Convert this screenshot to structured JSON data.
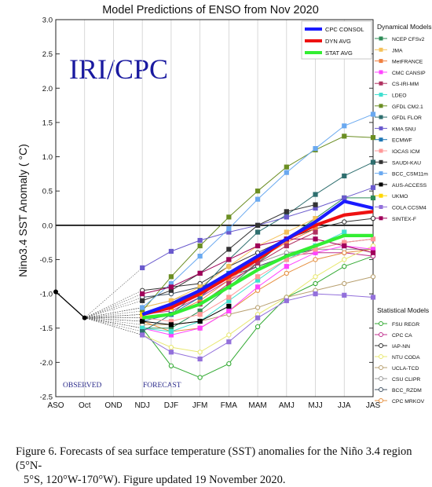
{
  "chart_data": {
    "type": "line",
    "title": "Model Predictions of ENSO from Nov 2020",
    "ylabel": "Nino3.4 SST Anomaly ( °C)",
    "xlabel": "",
    "categories": [
      "ASO",
      "Oct",
      "OND",
      "NDJ",
      "DJF",
      "JFM",
      "FMA",
      "MAM",
      "AMJ",
      "MJJ",
      "JJA",
      "JAS"
    ],
    "ylim": [
      -2.5,
      3.0
    ],
    "yticks": [
      "3.0",
      "2.5",
      "2.0",
      "1.5",
      "1.0",
      "0.5",
      "0.0",
      "-0.5",
      "-1.0",
      "-1.5",
      "-2.0",
      "-2.5"
    ],
    "watermark": "IRI/CPC",
    "observed_label": "OBSERVED",
    "forecast_label": "FORECAST",
    "observed": [
      -0.97,
      -1.35
    ],
    "dynamical_title": "Dynamical Models",
    "statistical_title": "Statistical Models",
    "consensus": [
      {
        "name": "CPC CONSOL",
        "color": "#1a1aff",
        "values": [
          -1.3,
          -1.15,
          -0.95,
          -0.7,
          -0.45,
          -0.2,
          0.05,
          0.35,
          0.25
        ]
      },
      {
        "name": "DYN AVG",
        "color": "#ee1111",
        "values": [
          -1.3,
          -1.2,
          -1.0,
          -0.75,
          -0.5,
          -0.2,
          0.0,
          0.15,
          0.2
        ]
      },
      {
        "name": "STAT AVG",
        "color": "#33ee33",
        "values": [
          -1.35,
          -1.3,
          -1.15,
          -0.9,
          -0.65,
          -0.45,
          -0.3,
          -0.15,
          -0.15
        ]
      }
    ],
    "dynamical": [
      {
        "name": "NCEP CFSv2",
        "color": "#2e8b57",
        "marker": "square",
        "values": [
          -1.5,
          -1.5,
          -1.25,
          -0.9,
          -0.55,
          -0.2,
          0.1,
          0.4,
          0.4
        ]
      },
      {
        "name": "JMA",
        "color": "#f4c15a",
        "marker": "square",
        "values": [
          -1.2,
          -1.1,
          -0.9,
          -0.6,
          -0.3,
          -0.1,
          0.1,
          null,
          null
        ]
      },
      {
        "name": "MetFRANCE",
        "color": "#f08040",
        "marker": "square",
        "values": [
          -1.35,
          -1.3,
          -1.1,
          -0.8,
          -0.5,
          -0.25,
          -0.05,
          null,
          null
        ]
      },
      {
        "name": "CMC CANSIP",
        "color": "#ff44ff",
        "marker": "square",
        "values": [
          -1.5,
          -1.6,
          -1.5,
          -1.25,
          -0.9,
          -0.6,
          -0.4,
          -0.3,
          -0.35
        ]
      },
      {
        "name": "CS-IRI-MM",
        "color": "#b03060",
        "marker": "square",
        "values": [
          -1.35,
          -1.3,
          -1.15,
          -0.85,
          -0.55,
          -0.3,
          -0.1,
          null,
          null
        ]
      },
      {
        "name": "LDEO",
        "color": "#40e0d0",
        "marker": "square",
        "values": [
          -1.5,
          -1.55,
          -1.4,
          -1.1,
          -0.8,
          -0.5,
          -0.3,
          -0.1,
          null
        ]
      },
      {
        "name": "GFDL CM2.1",
        "color": "#6b8e23",
        "marker": "square",
        "values": [
          -1.25,
          -0.75,
          -0.3,
          0.12,
          0.5,
          0.85,
          1.1,
          1.3,
          1.28
        ]
      },
      {
        "name": "GFDL FLOR",
        "color": "#2f6f6f",
        "marker": "square",
        "values": [
          -1.55,
          -1.3,
          -0.95,
          -0.5,
          -0.1,
          0.15,
          0.45,
          0.72,
          0.92
        ]
      },
      {
        "name": "KMA SNU",
        "color": "#6a5acd",
        "marker": "square",
        "values": [
          -0.62,
          -0.38,
          -0.22,
          -0.1,
          0.0,
          0.12,
          0.25,
          0.4,
          0.55
        ]
      },
      {
        "name": "ECMWF",
        "color": "#1f77b4",
        "marker": "square",
        "values": [
          -1.4,
          -1.3,
          -1.05,
          -0.7,
          null,
          null,
          null,
          null,
          null
        ]
      },
      {
        "name": "IOCAS ICM",
        "color": "#ff9999",
        "marker": "square",
        "values": [
          -1.35,
          -1.4,
          -1.3,
          -1.05,
          -0.75,
          -0.5,
          -0.35,
          -0.25,
          -0.2
        ]
      },
      {
        "name": "SAUDI-KAU",
        "color": "#333333",
        "marker": "square",
        "values": [
          -1.1,
          -0.95,
          -0.7,
          -0.35,
          0.0,
          0.2,
          0.3,
          null,
          null
        ]
      },
      {
        "name": "BCC_CSM11m",
        "color": "#6aa9f0",
        "marker": "square",
        "values": [
          -1.2,
          -0.85,
          -0.45,
          -0.05,
          0.38,
          0.77,
          1.12,
          1.45,
          1.62
        ]
      },
      {
        "name": "AUS-ACCESS",
        "color": "#000000",
        "marker": "square",
        "values": [
          -1.4,
          -1.45,
          -1.4,
          -1.18,
          null,
          null,
          null,
          null,
          null
        ]
      },
      {
        "name": "UKMO",
        "color": "#ffd700",
        "marker": "square",
        "values": [
          -1.3,
          -1.2,
          -1.0,
          null,
          null,
          null,
          null,
          null,
          null
        ]
      },
      {
        "name": "COLA CCSM4",
        "color": "#9370db",
        "marker": "square",
        "values": [
          -1.6,
          -1.85,
          -1.95,
          -1.7,
          -1.35,
          -1.1,
          -1.0,
          -1.02,
          -1.05
        ]
      },
      {
        "name": "SINTEX-F",
        "color": "#a0005a",
        "marker": "square",
        "values": [
          -1.0,
          -0.9,
          -0.7,
          -0.5,
          -0.3,
          -0.2,
          -0.2,
          -0.3,
          -0.4
        ]
      }
    ],
    "statistical": [
      {
        "name": "FSU REGR",
        "color": "#33aa33",
        "marker": "circle",
        "values": [
          -1.5,
          -2.05,
          -2.22,
          -2.02,
          -1.48,
          -1.05,
          -0.85,
          -0.6,
          -0.45
        ]
      },
      {
        "name": "CPC CA",
        "color": "#c0308f",
        "marker": "circle",
        "values": [
          -1.3,
          -1.25,
          -1.05,
          -0.8,
          -0.6,
          -0.45,
          -0.4,
          -0.4,
          -0.45
        ]
      },
      {
        "name": "IAP-NN",
        "color": "#333333",
        "marker": "circle",
        "values": [
          -0.95,
          -0.9,
          -0.85,
          -0.6,
          -0.4,
          -0.2,
          -0.05,
          0.05,
          0.1
        ]
      },
      {
        "name": "NTU CODA",
        "color": "#e8e870",
        "marker": "circle",
        "values": [
          -1.6,
          -1.78,
          -1.85,
          -1.6,
          -1.3,
          -1.05,
          -0.75,
          -0.5,
          -0.3
        ]
      },
      {
        "name": "UCLA-TCD",
        "color": "#b8a070",
        "marker": "circle",
        "values": [
          -1.45,
          -1.45,
          -1.4,
          -1.3,
          -1.2,
          -1.05,
          -0.95,
          -0.85,
          -0.75
        ]
      },
      {
        "name": "CSU CLIPR",
        "color": "#999999",
        "marker": "circle",
        "values": [
          -1.2,
          -1.1,
          -0.95,
          -0.75,
          -0.55,
          -0.4,
          -0.35,
          -0.35,
          -0.35
        ]
      },
      {
        "name": "BCC_RZDM",
        "color": "#445566",
        "marker": "circle",
        "values": [
          -1.05,
          -1.0,
          -0.9,
          -0.75,
          -0.6,
          -0.45,
          -0.35,
          -0.25,
          -0.2
        ]
      },
      {
        "name": "CPC MRKOV",
        "color": "#e69040",
        "marker": "circle",
        "values": [
          -1.4,
          -1.55,
          -1.5,
          -1.25,
          -0.95,
          -0.7,
          -0.5,
          -0.4,
          -0.35
        ]
      }
    ]
  },
  "caption": {
    "line1": "Figure 6. Forecasts of sea surface temperature (SST) anomalies for the Niño 3.4 region (5°N-",
    "line2": "5°S, 120°W-170°W). Figure updated 19 November 2020."
  }
}
